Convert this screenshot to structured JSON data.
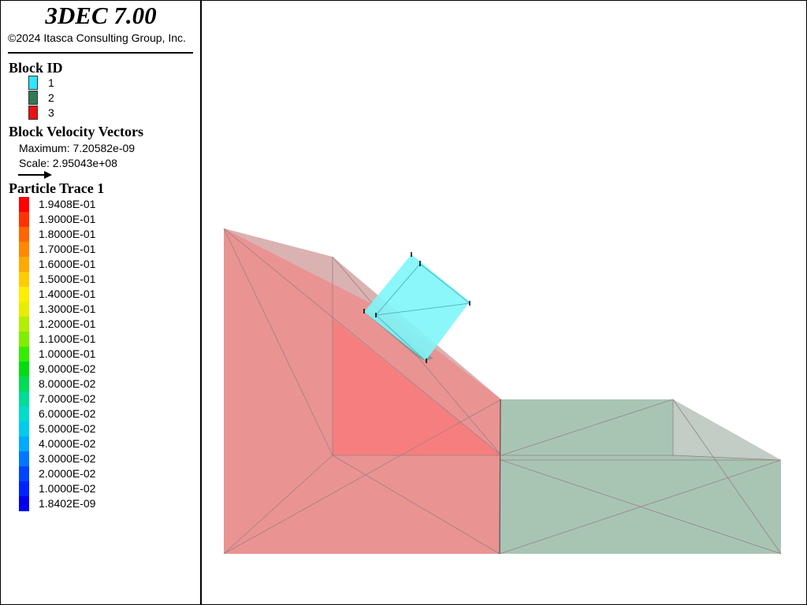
{
  "app": {
    "title": "3DEC 7.00",
    "copyright": "©2024 Itasca Consulting Group, Inc."
  },
  "legend": {
    "block_id": {
      "heading": "Block  ID",
      "items": [
        {
          "label": "1",
          "color": "#2ee6ff"
        },
        {
          "label": "2",
          "color": "#2f7a55"
        },
        {
          "label": "3",
          "color": "#ee1111"
        }
      ]
    },
    "velocity": {
      "heading": "Block Velocity Vectors",
      "maximum": "Maximum: 7.20582e-09",
      "scale": "Scale: 2.95043e+08"
    },
    "particle_trace": {
      "heading": "Particle Trace 1",
      "colors": [
        "#ff0000",
        "#ff3300",
        "#ff6600",
        "#ff8800",
        "#ffaa00",
        "#ffcc00",
        "#ffee00",
        "#e6ee00",
        "#b3ee00",
        "#80ee00",
        "#33ee00",
        "#00dd11",
        "#00dd55",
        "#00dd99",
        "#00ddcc",
        "#00ccee",
        "#00aaff",
        "#0077ff",
        "#0044ff",
        "#0022ff",
        "#0000ee"
      ],
      "labels": [
        "1.9408E-01",
        "1.9000E-01",
        "1.8000E-01",
        "1.7000E-01",
        "1.6000E-01",
        "1.5000E-01",
        "1.4000E-01",
        "1.3000E-01",
        "1.2000E-01",
        "1.1000E-01",
        "1.0000E-01",
        "9.0000E-02",
        "8.0000E-02",
        "7.0000E-02",
        "6.0000E-02",
        "5.0000E-02",
        "4.0000E-02",
        "3.0000E-02",
        "2.0000E-02",
        "1.0000E-02",
        "1.8402E-09"
      ]
    }
  },
  "colors": {
    "slope_block": "#e98d8d",
    "slope_block_dark": "#ff6f6f",
    "slope_top": "#d8b6b6",
    "base_block": "#a3c2b0",
    "base_top": "#c3cdc7",
    "falling_block": "#7ef6f9",
    "falling_block_shadow": "#8a8a8a",
    "edge": "#9a8080"
  }
}
